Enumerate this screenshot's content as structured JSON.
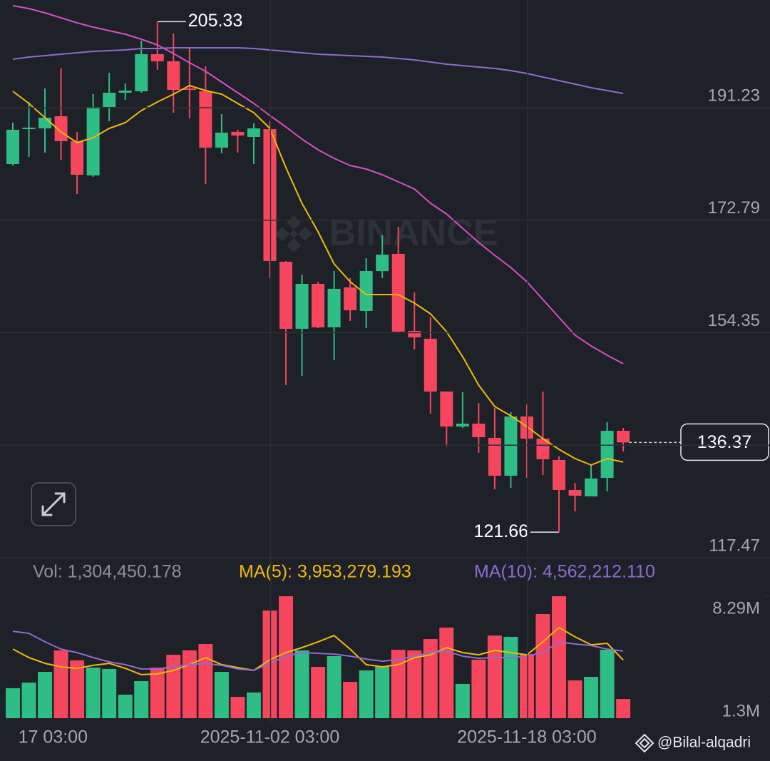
{
  "chart_data": {
    "type": "candlestick",
    "categories": [
      "17 03:00",
      null,
      null,
      null,
      null,
      null,
      null,
      null,
      null,
      null,
      null,
      null,
      null,
      null,
      null,
      null,
      "2025-11-02 03:00",
      null,
      null,
      null,
      null,
      null,
      null,
      null,
      null,
      null,
      null,
      null,
      null,
      null,
      null,
      null,
      "2025-11-18 03:00",
      null,
      null,
      null,
      null,
      null,
      null
    ],
    "candles": [
      {
        "open": 182.0,
        "high": 188.78,
        "low": 181.76,
        "close": 187.61
      },
      {
        "open": 187.72,
        "high": 192.17,
        "low": 183.16,
        "close": 187.96
      },
      {
        "open": 187.84,
        "high": 194.39,
        "low": 183.87,
        "close": 189.59
      },
      {
        "open": 189.83,
        "high": 197.66,
        "low": 182.7,
        "close": 185.74
      },
      {
        "open": 185.74,
        "high": 187.26,
        "low": 177.09,
        "close": 180.24
      },
      {
        "open": 180.13,
        "high": 193.45,
        "low": 179.89,
        "close": 191.35
      },
      {
        "open": 191.35,
        "high": 196.96,
        "low": 189.01,
        "close": 193.68
      },
      {
        "open": 193.68,
        "high": 195.2,
        "low": 192.52,
        "close": 194.04
      },
      {
        "open": 193.92,
        "high": 202.22,
        "low": 193.68,
        "close": 200.0
      },
      {
        "open": 200.0,
        "high": 205.33,
        "low": 197.43,
        "close": 198.83
      },
      {
        "open": 198.83,
        "high": 203.39,
        "low": 190.41,
        "close": 194.15
      },
      {
        "open": 194.39,
        "high": 201.17,
        "low": 189.48,
        "close": 194.15
      },
      {
        "open": 193.92,
        "high": 198.01,
        "low": 178.72,
        "close": 184.68
      },
      {
        "open": 184.68,
        "high": 190.18,
        "low": 183.75,
        "close": 187.14
      },
      {
        "open": 187.26,
        "high": 187.61,
        "low": 183.87,
        "close": 186.67
      },
      {
        "open": 186.44,
        "high": 188.66,
        "low": 182.0,
        "close": 187.84
      },
      {
        "open": 187.72,
        "high": 189.01,
        "low": 163.29,
        "close": 166.1
      },
      {
        "open": 165.98,
        "high": 166.1,
        "low": 145.76,
        "close": 154.99
      },
      {
        "open": 154.99,
        "high": 163.88,
        "low": 147.28,
        "close": 162.36
      },
      {
        "open": 162.36,
        "high": 162.71,
        "low": 155.11,
        "close": 155.23
      },
      {
        "open": 155.23,
        "high": 164.46,
        "low": 149.85,
        "close": 161.54
      },
      {
        "open": 161.77,
        "high": 163.29,
        "low": 156.28,
        "close": 158.03
      },
      {
        "open": 157.92,
        "high": 166.57,
        "low": 155.11,
        "close": 164.46
      },
      {
        "open": 164.46,
        "high": 170.31,
        "low": 163.29,
        "close": 167.15
      },
      {
        "open": 167.27,
        "high": 171.71,
        "low": 154.41,
        "close": 154.53
      },
      {
        "open": 154.64,
        "high": 160.96,
        "low": 151.6,
        "close": 153.59
      },
      {
        "open": 153.36,
        "high": 156.86,
        "low": 141.08,
        "close": 144.71
      },
      {
        "open": 144.71,
        "high": 144.71,
        "low": 135.71,
        "close": 138.98
      },
      {
        "open": 138.98,
        "high": 144.59,
        "low": 138.75,
        "close": 139.45
      },
      {
        "open": 139.45,
        "high": 142.84,
        "low": 134.66,
        "close": 137.23
      },
      {
        "open": 137.11,
        "high": 142.02,
        "low": 128.69,
        "close": 130.91
      },
      {
        "open": 130.91,
        "high": 141.32,
        "low": 128.93,
        "close": 140.62
      },
      {
        "open": 140.62,
        "high": 142.6,
        "low": 130.56,
        "close": 136.99
      },
      {
        "open": 136.99,
        "high": 144.71,
        "low": 131.03,
        "close": 133.6
      },
      {
        "open": 133.49,
        "high": 134.07,
        "low": 121.66,
        "close": 128.58
      },
      {
        "open": 128.58,
        "high": 129.75,
        "low": 125.07,
        "close": 127.64
      },
      {
        "open": 127.52,
        "high": 132.67,
        "low": 127.52,
        "close": 130.45
      },
      {
        "open": 130.56,
        "high": 139.68,
        "low": 128.34,
        "close": 138.28
      },
      {
        "open": 138.28,
        "high": 138.75,
        "low": 134.89,
        "close": 136.37
      }
    ],
    "up_color": "#2ebd85",
    "down_color": "#f6465d",
    "ylim": [
      117.47,
      208.88
    ],
    "yticks": [
      191.23,
      172.79,
      154.35,
      135.91,
      117.47
    ],
    "grid": true,
    "high_label_candle": 9,
    "low_label_candle": 34,
    "ma_lines": [
      {
        "color": "#f0b90b",
        "values": [
          193.92,
          191.93,
          189.59,
          187.26,
          185.5,
          186.32,
          187.84,
          188.78,
          190.76,
          192.17,
          193.45,
          194.85,
          194.04,
          193.45,
          191.93,
          190.41,
          187.84,
          181.41,
          175.57,
          170.89,
          165.63,
          162.71,
          160.6,
          160.6,
          160.6,
          159.2,
          157.45,
          154.53,
          150.44,
          145.76,
          142.25,
          140.73,
          138.98,
          136.99,
          135.24,
          133.72,
          132.67,
          133.72,
          133.14
        ]
      },
      {
        "color": "#d84fc6",
        "values": [
          207.95,
          207.48,
          206.78,
          205.96,
          205.14,
          204.44,
          203.85,
          203.27,
          202.45,
          201.52,
          200.11,
          198.59,
          197.19,
          195.44,
          193.68,
          191.93,
          189.94,
          188.07,
          186.09,
          184.33,
          182.93,
          181.76,
          181.18,
          180.24,
          179.07,
          177.9,
          175.57,
          173.81,
          171.48,
          169.14,
          167.03,
          165.05,
          162.71,
          159.79,
          156.86,
          153.94,
          152.19,
          150.67,
          149.27
        ]
      },
      {
        "color": "#8e6bd2",
        "values": [
          199.18,
          199.53,
          199.76,
          200.0,
          200.23,
          200.46,
          200.58,
          200.7,
          200.93,
          200.93,
          201.05,
          201.05,
          201.05,
          201.05,
          201.05,
          200.93,
          200.7,
          200.46,
          200.23,
          200.0,
          199.88,
          199.76,
          199.65,
          199.53,
          199.3,
          199.06,
          198.71,
          198.36,
          198.13,
          197.89,
          197.66,
          197.31,
          196.84,
          196.26,
          195.67,
          195.09,
          194.5,
          194.04,
          193.57
        ]
      }
    ],
    "volume": {
      "values": [
        2040000,
        2420000,
        3150000,
        4610000,
        3930000,
        3440000,
        3350000,
        1600000,
        2520000,
        3440000,
        4310000,
        4610000,
        5040000,
        3150000,
        1450000,
        1750000,
        7320000,
        8290000,
        4610000,
        3490000,
        4220000,
        2470000,
        3250000,
        3540000,
        4650000,
        4610000,
        5380000,
        6160000,
        2330000,
        3980000,
        5620000,
        5530000,
        4360000,
        7080000,
        8290000,
        2570000,
        2810000,
        4650000,
        1304450.178
      ],
      "ylim": [
        0,
        8290000
      ],
      "yticks": [
        {
          "value": 8290000,
          "label": "8.29M"
        },
        {
          "value": 1300000,
          "label": "1.3M"
        }
      ],
      "ma_lines": [
        {
          "color": "#f0b90b",
          "values": [
            4700000,
            4120000,
            3730000,
            3490000,
            3390000,
            3590000,
            3730000,
            3390000,
            2960000,
            3010000,
            3250000,
            3640000,
            4120000,
            3640000,
            3440000,
            3250000,
            3980000,
            4460000,
            4800000,
            5190000,
            5620000,
            4700000,
            3640000,
            3490000,
            3640000,
            4120000,
            4310000,
            4800000,
            4460000,
            4310000,
            4610000,
            4460000,
            4310000,
            5190000,
            6160000,
            5530000,
            4990000,
            5090000,
            3953279.193
          ]
        },
        {
          "color": "#8e6bd2",
          "values": [
            5910000,
            5770000,
            5190000,
            4700000,
            4460000,
            4120000,
            3830000,
            3640000,
            3350000,
            3350000,
            3490000,
            3640000,
            3730000,
            3590000,
            3350000,
            3250000,
            3730000,
            4220000,
            4460000,
            4410000,
            4360000,
            4220000,
            4020000,
            3880000,
            3980000,
            4220000,
            4460000,
            4560000,
            4220000,
            4070000,
            4120000,
            4120000,
            4220000,
            4460000,
            5190000,
            5040000,
            4940000,
            4700000,
            4562212.11
          ]
        }
      ],
      "legend": [
        {
          "text": "Vol: 1,304,450.178",
          "color": "#8a8f98"
        },
        {
          "text": "MA(5): 3,953,279.193",
          "color": "#f0b90b"
        },
        {
          "text": "MA(10): 4,562,212.110",
          "color": "#8e6bd2"
        }
      ]
    },
    "watermark": "BINANCE",
    "credit": "@Bilal-alqadri"
  }
}
